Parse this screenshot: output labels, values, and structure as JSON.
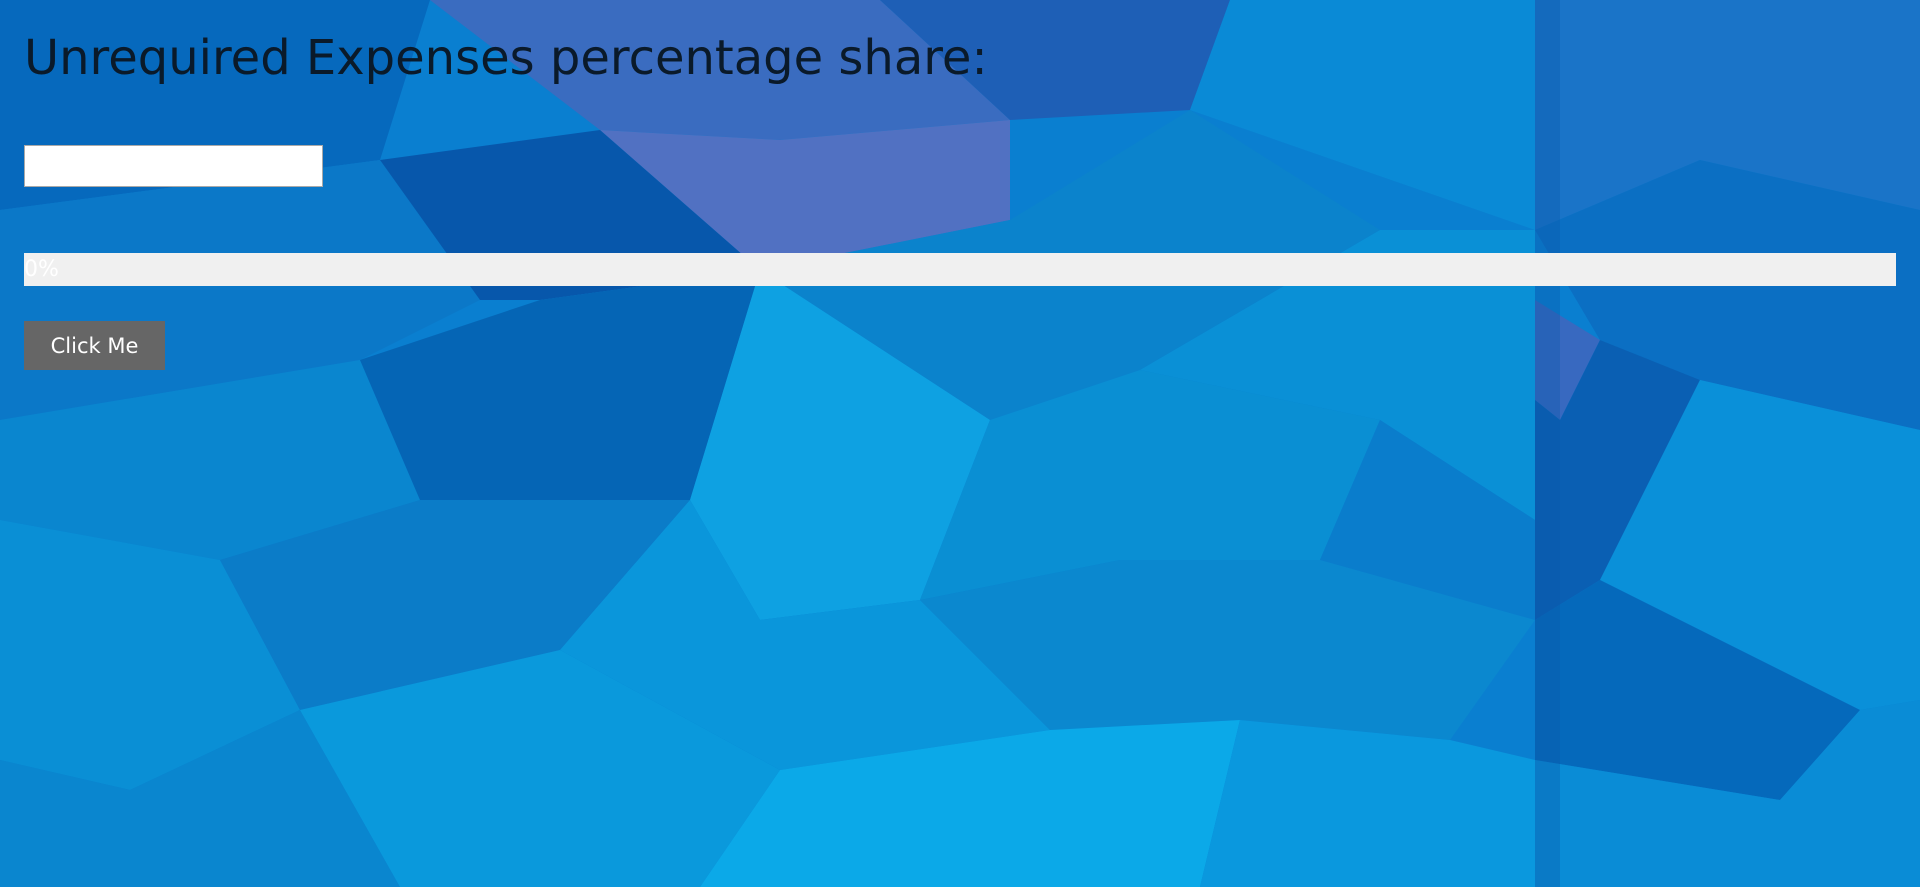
{
  "page": {
    "title": "Unrequired Expenses percentage share:"
  },
  "expense_input": {
    "value": "",
    "placeholder": ""
  },
  "progress": {
    "percent": 0,
    "label": "0%"
  },
  "button": {
    "label": "Click Me"
  },
  "colors": {
    "background_primary": "#0a7fd0",
    "background_dark": "#0456a8",
    "background_light": "#1aa3e6",
    "title_text": "#0a1a2a",
    "progress_track": "#f0f0f0",
    "progress_fill": "#4caf50",
    "button_bg": "#666666",
    "button_text": "#ffffff"
  }
}
